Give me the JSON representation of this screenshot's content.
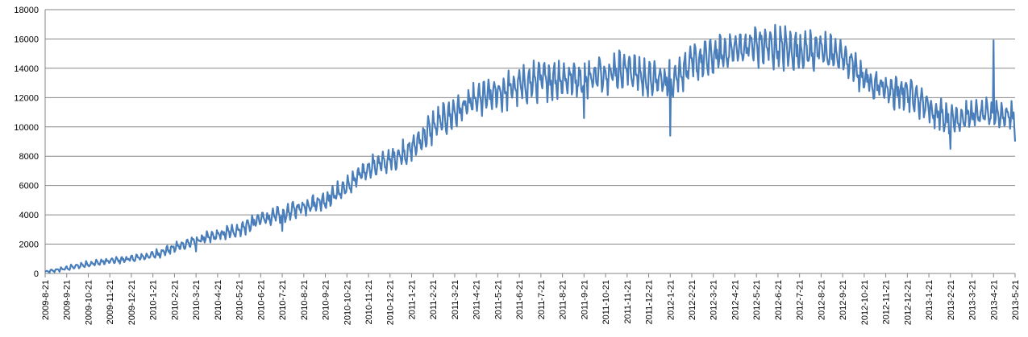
{
  "chart_data": {
    "type": "line",
    "title": "",
    "xlabel": "",
    "ylabel": "",
    "ylim": [
      0,
      18000
    ],
    "yticks": [
      0,
      2000,
      4000,
      6000,
      8000,
      10000,
      12000,
      14000,
      16000,
      18000
    ],
    "grid": "horizontal",
    "legend": "none",
    "x_tick_labels": [
      "2009-8-21",
      "2009-9-21",
      "2009-10-21",
      "2009-11-21",
      "2009-12-21",
      "2010-1-21",
      "2010-2-21",
      "2010-3-21",
      "2010-4-21",
      "2010-5-21",
      "2010-6-21",
      "2010-7-21",
      "2010-8-21",
      "2010-9-21",
      "2010-10-21",
      "2010-11-21",
      "2010-12-21",
      "2011-1-21",
      "2011-2-21",
      "2011-3-21",
      "2011-4-21",
      "2011-5-21",
      "2011-6-21",
      "2011-7-21",
      "2011-8-21",
      "2011-9-21",
      "2011-10-21",
      "2011-11-21",
      "2011-12-21",
      "2012-1-21",
      "2012-2-21",
      "2012-3-21",
      "2012-4-21",
      "2012-5-21",
      "2012-6-21",
      "2012-7-21",
      "2012-8-21",
      "2012-9-21",
      "2012-10-21",
      "2012-11-21",
      "2012-12-21",
      "2013-1-21",
      "2013-2-21",
      "2013-3-21",
      "2013-4-21",
      "2013-5-21"
    ],
    "series": [
      {
        "color": "#4a7ebb",
        "x": [
          "2009-8-21",
          "2009-9-21",
          "2009-10-21",
          "2009-11-21",
          "2009-12-21",
          "2010-1-21",
          "2010-2-21",
          "2010-3-21",
          "2010-4-21",
          "2010-5-21",
          "2010-6-21",
          "2010-7-21",
          "2010-8-21",
          "2010-9-21",
          "2010-10-21",
          "2010-11-21",
          "2010-12-21",
          "2011-1-21",
          "2011-2-21",
          "2011-3-21",
          "2011-4-21",
          "2011-5-21",
          "2011-6-21",
          "2011-7-21",
          "2011-8-21",
          "2011-9-21",
          "2011-10-21",
          "2011-11-21",
          "2011-12-21",
          "2012-1-21",
          "2012-2-21",
          "2012-3-21",
          "2012-4-21",
          "2012-5-21",
          "2012-6-21",
          "2012-7-21",
          "2012-8-21",
          "2012-9-21",
          "2012-10-21",
          "2012-11-21",
          "2012-12-21",
          "2013-1-21",
          "2013-2-21",
          "2013-3-21",
          "2013-4-21",
          "2013-5-21"
        ],
        "baseline": [
          100,
          350,
          650,
          850,
          1000,
          1250,
          1750,
          2250,
          2600,
          3000,
          3700,
          4000,
          4600,
          5000,
          5900,
          7200,
          7700,
          8500,
          10000,
          11000,
          11800,
          12300,
          12800,
          13200,
          13300,
          13300,
          13700,
          14000,
          13200,
          13200,
          14300,
          14800,
          15300,
          15600,
          15400,
          15200,
          15200,
          14800,
          13300,
          12600,
          12300,
          11300,
          10500,
          10800,
          10900,
          10700
        ],
        "spread": [
          100,
          200,
          250,
          250,
          300,
          350,
          450,
          450,
          500,
          600,
          700,
          750,
          750,
          800,
          850,
          900,
          1000,
          1200,
          1300,
          1300,
          1400,
          1500,
          1500,
          1600,
          1600,
          1600,
          1600,
          1600,
          1500,
          1500,
          1600,
          1600,
          1600,
          1700,
          1700,
          1700,
          1700,
          1600,
          1500,
          1500,
          1500,
          1400,
          1300,
          1200,
          1200,
          1200
        ],
        "dips": [
          [
            "2010-3-21",
            1500
          ],
          [
            "2010-7-21",
            2900
          ],
          [
            "2011-9-21",
            10600
          ],
          [
            "2012-1-21",
            9400
          ],
          [
            "2013-2-21",
            8500
          ],
          [
            "2013-5-21",
            9000
          ]
        ],
        "spikes": [
          [
            "2013-4-21",
            15900
          ]
        ]
      }
    ]
  }
}
